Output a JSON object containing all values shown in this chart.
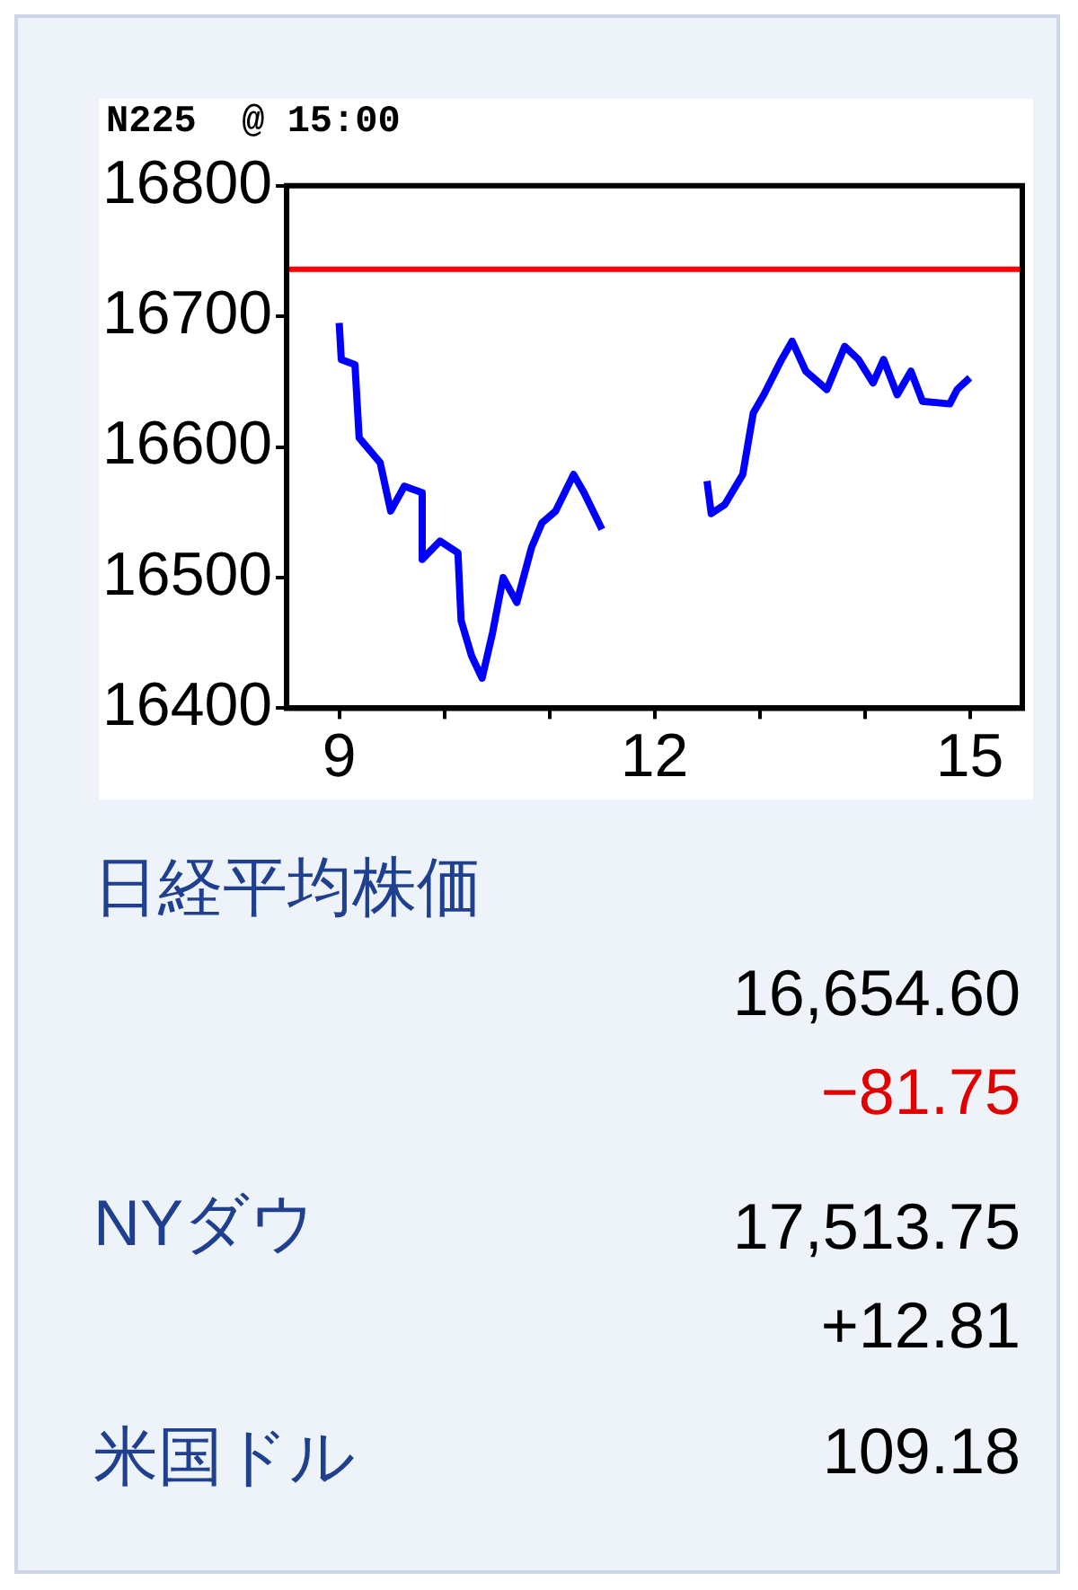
{
  "chart_data": {
    "type": "line",
    "title": "N225  @ 15:00",
    "x": [
      9.0,
      9.02,
      9.15,
      9.19,
      9.39,
      9.49,
      9.62,
      9.79,
      9.79,
      9.96,
      10.13,
      10.16,
      10.26,
      10.36,
      10.46,
      10.56,
      10.69,
      10.83,
      10.93,
      11.06,
      11.23,
      11.33,
      11.5,
      12.0,
      12.5,
      12.54,
      12.67,
      12.84,
      12.94,
      13.04,
      13.21,
      13.31,
      13.44,
      13.64,
      13.81,
      13.94,
      14.08,
      14.18,
      14.31,
      14.44,
      14.55,
      14.81,
      14.88,
      15.0
    ],
    "series": [
      {
        "color": "#0000ff",
        "values": [
          16695,
          16667,
          16663,
          16607,
          16588,
          16551,
          16570,
          16565,
          16514,
          16528,
          16519,
          16467,
          16440,
          16423,
          16458,
          16500,
          16481,
          16523,
          16542,
          16551,
          16579,
          16565,
          16537,
          null,
          16574,
          16549,
          16556,
          16579,
          16626,
          16640,
          16667,
          16681,
          16658,
          16644,
          16677,
          16667,
          16649,
          16667,
          16640,
          16658,
          16635,
          16633,
          16644,
          16653
        ]
      }
    ],
    "xlim": [
      8.5,
      15.5
    ],
    "xticks": [
      9,
      {
        "value": 10,
        "label": null
      },
      {
        "value": 11,
        "label": null
      },
      12,
      {
        "value": 13,
        "label": null
      },
      {
        "value": 14,
        "label": null
      },
      15
    ],
    "ylim": [
      16400,
      16800
    ],
    "yticks": [
      16400,
      16500,
      16600,
      16700,
      16800
    ],
    "ref_lines": [
      {
        "axis": "y",
        "value": 16736,
        "color": "#ff0000"
      }
    ],
    "marker": "none",
    "legend": false,
    "annotations": [
      "日経平均株価",
      "16,654.60",
      "−81.75",
      "NYダウ",
      "17,513.75",
      "+12.81",
      "米国ドル",
      "109.18"
    ]
  }
}
